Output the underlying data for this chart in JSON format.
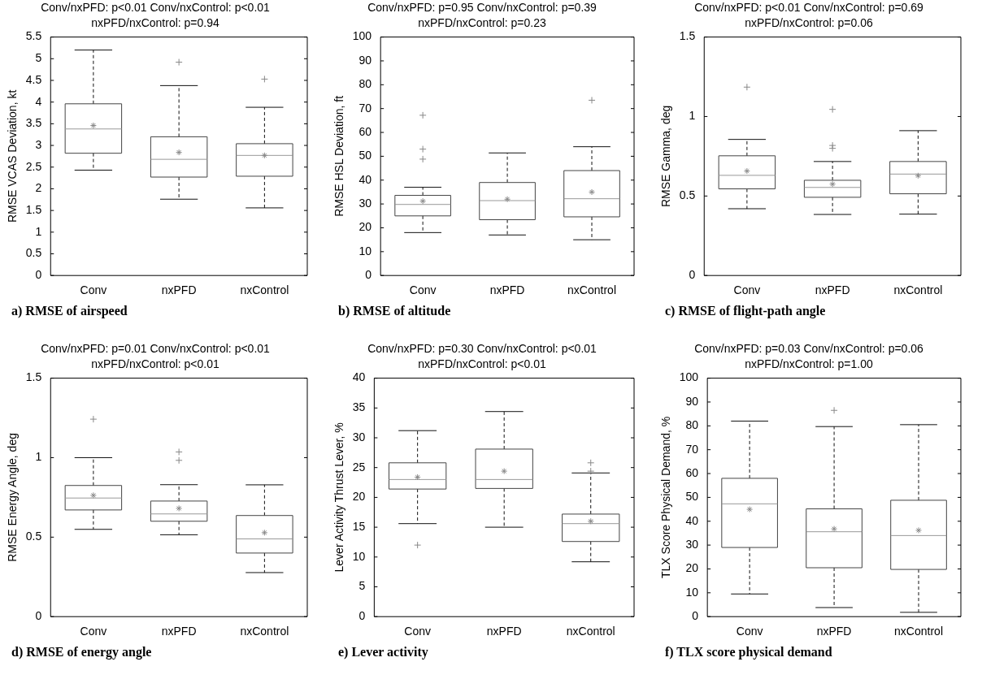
{
  "chart_data": [
    {
      "type": "box",
      "title": "Conv/nxPFD: p<0.01 Conv/nxControl: p<0.01",
      "subtitle": "nxPFD/nxControl: p=0.94",
      "ylabel": "RMSE VCAS Deviation, kt",
      "categories": [
        "Conv",
        "nxPFD",
        "nxControl"
      ],
      "boxes": [
        {
          "low": 2.43,
          "q1": 2.82,
          "median": 3.38,
          "q3": 3.96,
          "high": 5.2,
          "mean": 3.46
        },
        {
          "low": 1.76,
          "q1": 2.27,
          "median": 2.68,
          "q3": 3.2,
          "high": 4.38,
          "mean": 2.84,
          "outliers": [
            4.92
          ]
        },
        {
          "low": 1.56,
          "q1": 2.29,
          "median": 2.77,
          "q3": 3.04,
          "high": 3.88,
          "mean": 2.77,
          "outliers": [
            4.53
          ]
        }
      ],
      "ylim": [
        0,
        5.5
      ],
      "yticks": [
        0,
        0.5,
        1,
        1.5,
        2,
        2.5,
        3,
        3.5,
        4,
        4.5,
        5,
        5.5
      ],
      "annotations": [
        "a) RMSE of airspeed"
      ]
    },
    {
      "type": "box",
      "title": "Conv/nxPFD: p=0.95 Conv/nxControl: p=0.39",
      "subtitle": "nxPFD/nxControl: p=0.23",
      "ylabel": "RMSE HSL Deviation, ft",
      "categories": [
        "Conv",
        "nxPFD",
        "nxControl"
      ],
      "boxes": [
        {
          "low": 18,
          "q1": 25,
          "median": 29.8,
          "q3": 33.6,
          "high": 37,
          "mean": 31.2,
          "outliers": [
            48.8,
            53,
            67.2
          ]
        },
        {
          "low": 17,
          "q1": 23.4,
          "median": 31.4,
          "q3": 39,
          "high": 51.4,
          "mean": 32
        },
        {
          "low": 15,
          "q1": 24.6,
          "median": 32.2,
          "q3": 44,
          "high": 54,
          "mean": 35,
          "outliers": [
            73.5
          ]
        }
      ],
      "ylim": [
        0,
        100
      ],
      "yticks": [
        0,
        10,
        20,
        30,
        40,
        50,
        60,
        70,
        80,
        90,
        100
      ],
      "annotations": [
        "b) RMSE of altitude"
      ]
    },
    {
      "type": "box",
      "title": "Conv/nxPFD: p<0.01 Conv/nxControl: p=0.69",
      "subtitle": "nxPFD/nxControl: p=0.06",
      "ylabel": "RMSE Gamma, deg",
      "categories": [
        "Conv",
        "nxPFD",
        "nxControl"
      ],
      "boxes": [
        {
          "low": 0.42,
          "q1": 0.545,
          "median": 0.63,
          "q3": 0.753,
          "high": 0.856,
          "mean": 0.657,
          "outliers": [
            1.185
          ]
        },
        {
          "low": 0.384,
          "q1": 0.492,
          "median": 0.554,
          "q3": 0.599,
          "high": 0.717,
          "mean": 0.575,
          "outliers": [
            0.8,
            0.818,
            1.045
          ]
        },
        {
          "low": 0.386,
          "q1": 0.514,
          "median": 0.638,
          "q3": 0.717,
          "high": 0.911,
          "mean": 0.628
        }
      ],
      "ylim": [
        0,
        1.5
      ],
      "yticks": [
        0,
        0.5,
        1,
        1.5
      ],
      "annotations": [
        "c) RMSE of flight-path angle"
      ]
    },
    {
      "type": "box",
      "title": "Conv/nxPFD: p=0.01 Conv/nxControl: p<0.01",
      "subtitle": "nxPFD/nxControl: p<0.01",
      "ylabel": "RMSE Energy Angle, deg",
      "categories": [
        "Conv",
        "nxPFD",
        "nxControl"
      ],
      "boxes": [
        {
          "low": 0.549,
          "q1": 0.671,
          "median": 0.746,
          "q3": 0.825,
          "high": 1.0,
          "mean": 0.763,
          "outliers": [
            1.242
          ]
        },
        {
          "low": 0.515,
          "q1": 0.6,
          "median": 0.646,
          "q3": 0.727,
          "high": 0.83,
          "mean": 0.681,
          "outliers": [
            0.983,
            1.036
          ]
        },
        {
          "low": 0.277,
          "q1": 0.4,
          "median": 0.489,
          "q3": 0.636,
          "high": 0.829,
          "mean": 0.528
        }
      ],
      "ylim": [
        0,
        1.5
      ],
      "yticks": [
        0,
        0.5,
        1,
        1.5
      ],
      "annotations": [
        "d) RMSE of energy angle"
      ]
    },
    {
      "type": "box",
      "title": "Conv/nxPFD: p=0.30 Conv/nxControl: p<0.01",
      "subtitle": "nxPFD/nxControl: p<0.01",
      "ylabel": "Lever Activity Thrust Lever, %",
      "categories": [
        "Conv",
        "nxPFD",
        "nxControl"
      ],
      "boxes": [
        {
          "low": 15.6,
          "q1": 21.4,
          "median": 23,
          "q3": 25.8,
          "high": 31.2,
          "mean": 23.4,
          "outliers": [
            12
          ]
        },
        {
          "low": 15,
          "q1": 21.5,
          "median": 23,
          "q3": 28.1,
          "high": 34.4,
          "mean": 24.4
        },
        {
          "low": 9.2,
          "q1": 12.6,
          "median": 15.6,
          "q3": 17.2,
          "high": 24.1,
          "mean": 16,
          "outliers": [
            24.4,
            25.8
          ]
        }
      ],
      "ylim": [
        0,
        40
      ],
      "yticks": [
        0,
        5,
        10,
        15,
        20,
        25,
        30,
        35,
        40
      ],
      "annotations": [
        "e) Lever activity"
      ]
    },
    {
      "type": "box",
      "title": "Conv/nxPFD: p=0.03 Conv/nxControl: p=0.06",
      "subtitle": "nxPFD/nxControl: p=1.00",
      "ylabel": "TLX Score Physical Demand, %",
      "categories": [
        "Conv",
        "nxPFD",
        "nxControl"
      ],
      "boxes": [
        {
          "low": 9.5,
          "q1": 29,
          "median": 47.3,
          "q3": 58,
          "high": 82,
          "mean": 45
        },
        {
          "low": 3.8,
          "q1": 20.5,
          "median": 35.6,
          "q3": 45.2,
          "high": 79.7,
          "mean": 36.8,
          "outliers": [
            86.5
          ]
        },
        {
          "low": 1.8,
          "q1": 19.8,
          "median": 34,
          "q3": 48.8,
          "high": 80.5,
          "mean": 36.2
        }
      ],
      "ylim": [
        0,
        100
      ],
      "yticks": [
        0,
        10,
        20,
        30,
        40,
        50,
        60,
        70,
        80,
        90,
        100
      ],
      "annotations": [
        "f) TLX score physical demand"
      ]
    }
  ]
}
